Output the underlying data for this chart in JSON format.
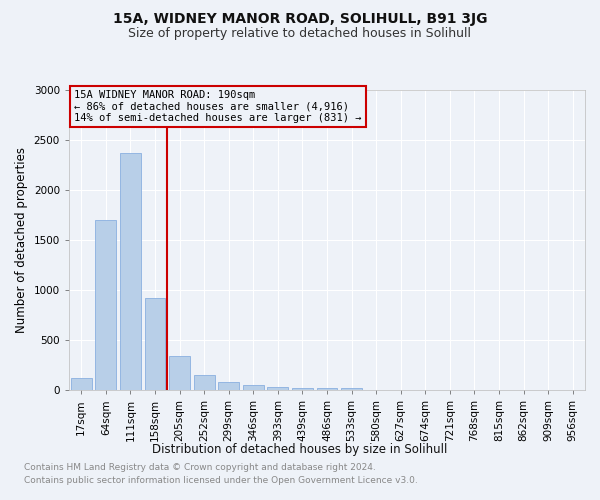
{
  "title1": "15A, WIDNEY MANOR ROAD, SOLIHULL, B91 3JG",
  "title2": "Size of property relative to detached houses in Solihull",
  "xlabel": "Distribution of detached houses by size in Solihull",
  "ylabel": "Number of detached properties",
  "footnote1": "Contains HM Land Registry data © Crown copyright and database right 2024.",
  "footnote2": "Contains public sector information licensed under the Open Government Licence v3.0.",
  "bar_labels": [
    "17sqm",
    "64sqm",
    "111sqm",
    "158sqm",
    "205sqm",
    "252sqm",
    "299sqm",
    "346sqm",
    "393sqm",
    "439sqm",
    "486sqm",
    "533sqm",
    "580sqm",
    "627sqm",
    "674sqm",
    "721sqm",
    "768sqm",
    "815sqm",
    "862sqm",
    "909sqm",
    "956sqm"
  ],
  "bar_values": [
    120,
    1700,
    2370,
    920,
    340,
    150,
    85,
    50,
    35,
    25,
    25,
    25,
    0,
    0,
    0,
    0,
    0,
    0,
    0,
    0,
    0
  ],
  "bar_color": "#b8cfe8",
  "bar_edge_color": "#8aafe0",
  "vline_x_idx": 4,
  "vline_color": "#cc0000",
  "annotation_line1": "15A WIDNEY MANOR ROAD: 190sqm",
  "annotation_line2": "← 86% of detached houses are smaller (4,916)",
  "annotation_line3": "14% of semi-detached houses are larger (831) →",
  "annotation_box_color": "#cc0000",
  "ylim": [
    0,
    3000
  ],
  "yticks": [
    0,
    500,
    1000,
    1500,
    2000,
    2500,
    3000
  ],
  "bg_color": "#eef2f8",
  "plot_bg_color": "#eef2f8",
  "grid_color": "#ffffff",
  "title1_fontsize": 10,
  "title2_fontsize": 9,
  "xlabel_fontsize": 8.5,
  "ylabel_fontsize": 8.5,
  "tick_fontsize": 7.5,
  "annot_fontsize": 7.5,
  "footnote_fontsize": 6.5
}
